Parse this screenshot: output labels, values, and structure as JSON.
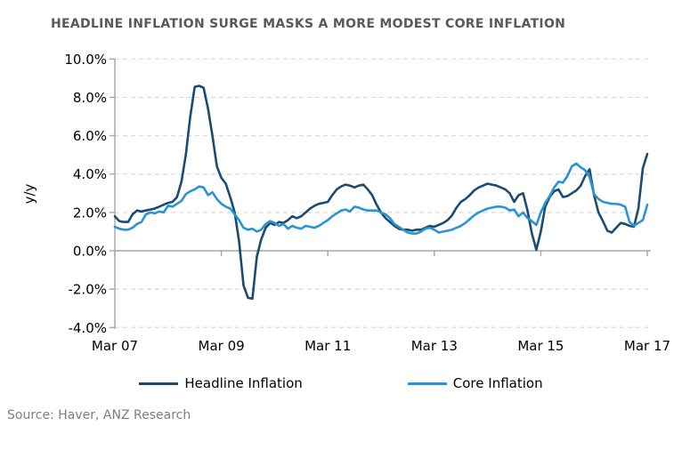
{
  "title": {
    "text": "HEADLINE INFLATION SURGE MASKS A MORE MODEST CORE INFLATION",
    "color": "#595959"
  },
  "source": {
    "text": "Source: Haver, ANZ Research",
    "color": "#7f7f7f"
  },
  "style": {
    "gridline": "#d9d9d9",
    "axis_line": "#a6a6a6",
    "tick_text": "#000000"
  },
  "chart_data": {
    "type": "line",
    "title": "HEADLINE INFLATION SURGE MASKS A MORE MODEST CORE INFLATION",
    "xlabel": "",
    "ylabel": "y/y",
    "x_frequency": "monthly",
    "x_start": "Mar 2007",
    "x_end": "Mar 2017",
    "ylim": [
      -4,
      10
    ],
    "grid": "horizontal dashed",
    "legend_position": "bottom",
    "y_tick_values": [
      10,
      8,
      6,
      4,
      2,
      0,
      -2,
      -4
    ],
    "y_tick_labels": [
      "10.0%",
      "8.0%",
      "6.0%",
      "4.0%",
      "2.0%",
      "0.0%",
      "-2.0%",
      "-4.0%"
    ],
    "x_tick_labels": [
      "Mar 07",
      "Mar 09",
      "Mar 11",
      "Mar 13",
      "Mar 15",
      "Mar 17"
    ],
    "x_tick_indices": [
      0,
      24,
      48,
      72,
      96,
      120
    ],
    "series": [
      {
        "name": "Headline Inflation",
        "color": "#1c4b72",
        "values": [
          1.8,
          1.55,
          1.5,
          1.5,
          1.9,
          2.1,
          2.05,
          2.1,
          2.15,
          2.2,
          2.3,
          2.4,
          2.5,
          2.55,
          2.8,
          3.6,
          5.0,
          7.0,
          8.55,
          8.6,
          8.5,
          7.4,
          6.0,
          4.4,
          3.8,
          3.5,
          2.8,
          2.0,
          0.5,
          -1.8,
          -2.45,
          -2.5,
          -0.3,
          0.6,
          1.2,
          1.45,
          1.35,
          1.5,
          1.45,
          1.6,
          1.8,
          1.7,
          1.8,
          2.0,
          2.2,
          2.35,
          2.45,
          2.5,
          2.55,
          2.9,
          3.2,
          3.35,
          3.45,
          3.4,
          3.3,
          3.4,
          3.45,
          3.2,
          2.9,
          2.4,
          2.0,
          1.7,
          1.5,
          1.3,
          1.15,
          1.1,
          1.1,
          1.05,
          1.1,
          1.1,
          1.2,
          1.3,
          1.25,
          1.35,
          1.45,
          1.6,
          1.85,
          2.25,
          2.55,
          2.7,
          2.9,
          3.15,
          3.3,
          3.4,
          3.5,
          3.45,
          3.4,
          3.3,
          3.2,
          3.0,
          2.55,
          2.9,
          3.0,
          2.1,
          0.9,
          0.05,
          1.0,
          2.3,
          2.8,
          3.1,
          3.2,
          2.8,
          2.85,
          3.0,
          3.15,
          3.4,
          3.9,
          4.25,
          2.9,
          2.0,
          1.55,
          1.05,
          0.95,
          1.2,
          1.45,
          1.4,
          1.3,
          1.25,
          2.2,
          4.3,
          5.05
        ]
      },
      {
        "name": "Core Inflation",
        "color": "#2a93d1",
        "values": [
          1.25,
          1.15,
          1.1,
          1.1,
          1.2,
          1.4,
          1.5,
          1.9,
          2.0,
          1.95,
          2.05,
          2.0,
          2.35,
          2.3,
          2.45,
          2.6,
          2.95,
          3.1,
          3.2,
          3.35,
          3.3,
          2.9,
          3.05,
          2.7,
          2.45,
          2.3,
          2.2,
          1.9,
          1.6,
          1.2,
          1.1,
          1.15,
          1.0,
          1.1,
          1.4,
          1.55,
          1.45,
          1.3,
          1.4,
          1.15,
          1.3,
          1.2,
          1.15,
          1.3,
          1.25,
          1.2,
          1.3,
          1.45,
          1.6,
          1.8,
          1.95,
          2.1,
          2.15,
          2.05,
          2.3,
          2.25,
          2.15,
          2.1,
          2.1,
          2.1,
          2.0,
          1.9,
          1.7,
          1.4,
          1.25,
          1.1,
          0.95,
          0.9,
          0.9,
          1.0,
          1.15,
          1.2,
          1.1,
          0.95,
          1.0,
          1.05,
          1.1,
          1.2,
          1.3,
          1.45,
          1.65,
          1.85,
          2.0,
          2.1,
          2.2,
          2.25,
          2.3,
          2.3,
          2.25,
          2.1,
          2.15,
          1.8,
          2.0,
          1.7,
          1.55,
          1.35,
          2.0,
          2.5,
          2.85,
          3.3,
          3.6,
          3.55,
          3.9,
          4.4,
          4.55,
          4.35,
          4.2,
          3.85,
          2.95,
          2.7,
          2.55,
          2.5,
          2.45,
          2.45,
          2.4,
          2.3,
          1.5,
          1.3,
          1.45,
          1.6,
          2.4
        ]
      }
    ]
  }
}
